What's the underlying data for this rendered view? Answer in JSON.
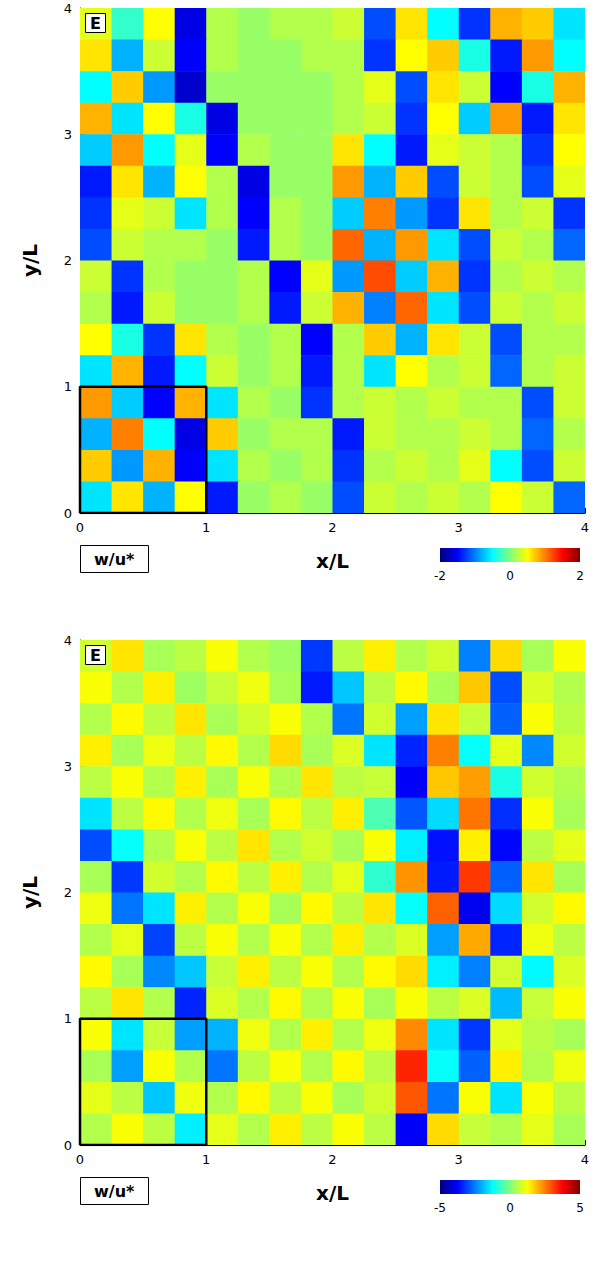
{
  "chart_data": [
    {
      "type": "heatmap",
      "title": "E",
      "x_label": "x/L",
      "y_label": "y/L",
      "colorbar_label": "w/u*",
      "xlim": [
        0,
        4
      ],
      "ylim": [
        0,
        4
      ],
      "xticks": [
        0,
        1,
        2,
        3,
        4
      ],
      "yticks": [
        0,
        1,
        2,
        3,
        4
      ],
      "x": [
        0.125,
        0.375,
        0.625,
        0.875,
        1.125,
        1.375,
        1.625,
        1.875,
        2.125,
        2.375,
        2.625,
        2.875,
        3.125,
        3.375,
        3.625,
        3.875
      ],
      "y": [
        3.875,
        3.625,
        3.375,
        3.125,
        2.875,
        2.625,
        2.375,
        2.125,
        1.875,
        1.625,
        1.375,
        1.125,
        0.875,
        0.625,
        0.375,
        0.125
      ],
      "values": [
        [
          0.4,
          -0.3,
          0.5,
          -1.6,
          0.2,
          0.1,
          0.2,
          0.2,
          0.3,
          -1.2,
          0.6,
          -0.5,
          -1.3,
          0.8,
          0.7,
          -0.6
        ],
        [
          0.6,
          -0.8,
          0.3,
          -1.5,
          0.2,
          0.1,
          0.1,
          0.2,
          0.2,
          -1.3,
          0.5,
          0.7,
          -0.4,
          -1.4,
          0.9,
          -0.5
        ],
        [
          -0.5,
          0.7,
          -0.9,
          -1.7,
          0.1,
          0.1,
          0.1,
          0.1,
          0.2,
          0.4,
          -1.2,
          0.6,
          0.3,
          -1.5,
          -0.4,
          0.8
        ],
        [
          0.8,
          -0.6,
          0.5,
          -0.4,
          -1.6,
          0.1,
          0.1,
          0.1,
          0.2,
          0.3,
          -1.3,
          0.5,
          -0.7,
          0.9,
          -1.4,
          0.6
        ],
        [
          -0.7,
          0.9,
          -0.5,
          0.4,
          -1.5,
          0.2,
          0.1,
          0.1,
          0.6,
          -0.5,
          -1.4,
          0.4,
          0.3,
          0.2,
          -1.3,
          0.5
        ],
        [
          -1.4,
          0.6,
          -0.8,
          0.5,
          0.2,
          -1.6,
          0.1,
          0.1,
          0.9,
          -0.8,
          0.7,
          -1.2,
          0.3,
          0.2,
          -1.2,
          0.4
        ],
        [
          -1.3,
          0.4,
          0.3,
          -0.6,
          0.2,
          -1.5,
          0.2,
          0.1,
          -0.7,
          1.0,
          -0.9,
          -1.3,
          0.6,
          0.2,
          0.3,
          -1.3
        ],
        [
          -1.2,
          0.3,
          0.2,
          0.2,
          0.1,
          -1.4,
          0.2,
          0.1,
          1.1,
          -0.8,
          0.9,
          -0.6,
          -1.2,
          0.3,
          0.2,
          -1.1
        ],
        [
          0.3,
          -1.3,
          0.2,
          0.1,
          0.1,
          0.2,
          -1.5,
          0.4,
          -0.9,
          1.2,
          -0.7,
          0.8,
          -1.3,
          0.2,
          0.3,
          0.2
        ],
        [
          0.2,
          -1.4,
          0.3,
          0.1,
          0.1,
          0.2,
          -1.4,
          0.3,
          0.8,
          -1.0,
          1.1,
          -0.6,
          -1.2,
          0.3,
          0.2,
          0.3
        ],
        [
          0.5,
          -0.4,
          -1.3,
          0.6,
          0.2,
          0.1,
          0.2,
          -1.5,
          0.2,
          0.7,
          -0.8,
          0.6,
          0.3,
          -1.2,
          0.2,
          0.2
        ],
        [
          -0.6,
          0.8,
          -1.4,
          -0.5,
          0.3,
          0.1,
          0.2,
          -1.4,
          0.2,
          -0.6,
          0.5,
          0.2,
          0.3,
          -1.1,
          0.2,
          0.3
        ],
        [
          0.9,
          -0.7,
          -1.5,
          0.8,
          -0.6,
          0.2,
          0.1,
          -1.3,
          0.2,
          0.3,
          0.2,
          0.3,
          0.2,
          0.2,
          -1.2,
          0.3
        ],
        [
          -0.8,
          1.0,
          -0.5,
          -1.6,
          0.7,
          0.1,
          0.2,
          0.2,
          -1.4,
          0.3,
          0.2,
          0.2,
          0.3,
          0.2,
          -1.1,
          0.2
        ],
        [
          0.7,
          -0.9,
          0.8,
          -1.5,
          -0.6,
          0.2,
          0.1,
          0.2,
          -1.3,
          0.2,
          0.3,
          0.2,
          0.4,
          -0.5,
          -1.2,
          0.3
        ],
        [
          -0.6,
          0.6,
          -0.8,
          0.5,
          -1.4,
          0.1,
          0.2,
          0.1,
          -1.2,
          0.3,
          0.2,
          0.3,
          0.2,
          0.5,
          0.3,
          -1.1
        ]
      ],
      "colorbar_range": [
        -2,
        2
      ],
      "colorbar_ticks": [
        -2,
        0,
        2
      ],
      "box": {
        "x": [
          0,
          1
        ],
        "y": [
          0,
          1
        ]
      }
    },
    {
      "type": "heatmap",
      "title": "E",
      "x_label": "x/L",
      "y_label": "y/L",
      "colorbar_label": "w/u*",
      "xlim": [
        0,
        4
      ],
      "ylim": [
        0,
        4
      ],
      "xticks": [
        0,
        1,
        2,
        3,
        4
      ],
      "yticks": [
        0,
        1,
        2,
        3,
        4
      ],
      "x": [
        0.125,
        0.375,
        0.625,
        0.875,
        1.125,
        1.375,
        1.625,
        1.875,
        2.125,
        2.375,
        2.625,
        2.875,
        3.125,
        3.375,
        3.625,
        3.875
      ],
      "y": [
        3.875,
        3.625,
        3.375,
        3.125,
        2.875,
        2.625,
        2.375,
        2.125,
        1.875,
        1.625,
        1.375,
        1.125,
        0.875,
        0.625,
        0.375,
        0.125
      ],
      "values": [
        [
          0.8,
          1.5,
          0.4,
          0.6,
          1.2,
          0.5,
          0.3,
          -3.2,
          0.6,
          1.4,
          0.5,
          0.8,
          -2.5,
          1.6,
          0.4,
          1.2
        ],
        [
          1.2,
          0.5,
          1.4,
          0.3,
          0.7,
          1.1,
          0.4,
          -3.5,
          -1.8,
          0.6,
          1.3,
          0.4,
          1.8,
          -3.0,
          0.9,
          0.5
        ],
        [
          0.5,
          1.3,
          0.6,
          1.5,
          0.4,
          0.8,
          1.2,
          0.5,
          -2.6,
          0.8,
          -2.2,
          1.5,
          0.7,
          -2.8,
          1.2,
          0.6
        ],
        [
          1.4,
          0.4,
          1.1,
          0.6,
          1.3,
          0.5,
          1.6,
          0.4,
          0.9,
          -1.5,
          -3.4,
          2.5,
          -1.2,
          1.0,
          -2.4,
          0.8
        ],
        [
          0.6,
          1.2,
          0.5,
          1.4,
          0.4,
          1.2,
          0.5,
          1.5,
          0.6,
          0.7,
          -3.8,
          1.8,
          2.2,
          -1.0,
          0.8,
          0.5
        ],
        [
          -1.5,
          0.6,
          1.3,
          0.5,
          1.1,
          0.4,
          1.3,
          0.6,
          1.4,
          -0.5,
          -2.9,
          -1.6,
          2.6,
          -3.3,
          1.2,
          0.4
        ],
        [
          -3.0,
          -1.2,
          0.5,
          1.2,
          0.6,
          1.5,
          0.5,
          0.8,
          0.4,
          1.2,
          -1.4,
          -3.6,
          1.4,
          -3.7,
          0.6,
          1.0
        ],
        [
          0.4,
          -3.2,
          0.8,
          0.5,
          1.3,
          0.6,
          1.4,
          0.5,
          1.0,
          -0.8,
          2.3,
          -3.5,
          3.2,
          -2.8,
          1.5,
          0.4
        ],
        [
          1.1,
          -2.6,
          -1.5,
          1.4,
          0.5,
          1.2,
          0.4,
          1.3,
          0.6,
          1.5,
          -1.2,
          2.8,
          -3.9,
          -1.6,
          0.8,
          1.3
        ],
        [
          0.5,
          1.0,
          -3.1,
          0.6,
          1.2,
          0.5,
          1.2,
          0.5,
          1.4,
          0.5,
          0.9,
          -2.2,
          2.1,
          -3.4,
          1.1,
          0.6
        ],
        [
          1.3,
          0.4,
          -2.4,
          -1.8,
          0.7,
          1.4,
          0.6,
          1.2,
          0.5,
          1.3,
          1.6,
          -1.4,
          -2.5,
          0.8,
          -1.3,
          0.9
        ],
        [
          0.6,
          1.5,
          0.5,
          -3.4,
          0.9,
          0.5,
          1.3,
          0.5,
          1.2,
          0.4,
          1.2,
          0.6,
          0.9,
          -1.9,
          0.7,
          1.2
        ],
        [
          1.2,
          -1.5,
          0.7,
          -2.2,
          -2.0,
          1.1,
          0.5,
          1.4,
          0.5,
          1.1,
          2.4,
          -1.5,
          -3.2,
          1.0,
          0.6,
          0.4
        ],
        [
          0.4,
          -2.2,
          1.2,
          0.5,
          -2.6,
          0.6,
          1.2,
          0.5,
          1.3,
          0.6,
          3.4,
          -1.2,
          -2.8,
          1.4,
          0.5,
          1.1
        ],
        [
          1.0,
          0.6,
          -1.8,
          1.1,
          0.5,
          1.3,
          0.6,
          1.2,
          0.4,
          0.8,
          2.9,
          -2.6,
          1.2,
          -1.5,
          1.2,
          0.6
        ],
        [
          0.5,
          1.2,
          0.6,
          -1.4,
          1.0,
          0.5,
          1.4,
          0.6,
          1.2,
          0.6,
          -3.8,
          1.6,
          0.7,
          0.5,
          1.0,
          0.4
        ]
      ],
      "colorbar_range": [
        -5,
        5
      ],
      "colorbar_ticks": [
        -5,
        0,
        5
      ],
      "box": {
        "x": [
          0,
          1
        ],
        "y": [
          0,
          1
        ]
      }
    }
  ]
}
